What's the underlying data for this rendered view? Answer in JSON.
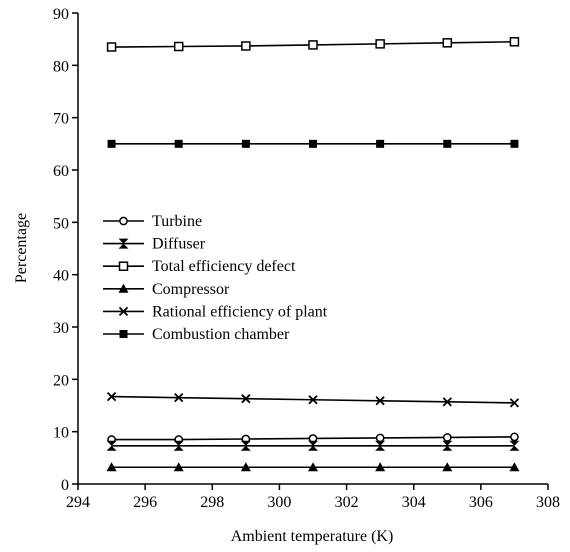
{
  "chart_data": {
    "type": "line",
    "title": "",
    "xlabel": "Ambient temperature (K)",
    "ylabel": "Percentage",
    "xlim": [
      294,
      308
    ],
    "ylim": [
      0,
      90
    ],
    "x_ticks": [
      294,
      296,
      298,
      300,
      302,
      304,
      306,
      308
    ],
    "y_ticks": [
      0,
      10,
      20,
      30,
      40,
      50,
      60,
      70,
      80,
      90
    ],
    "grid": false,
    "legend_position": "center-left",
    "x": [
      295,
      297,
      299,
      301,
      303,
      305,
      307
    ],
    "series": [
      {
        "name": "Turbine",
        "marker": "open-circle",
        "values": [
          8.5,
          8.5,
          8.6,
          8.7,
          8.8,
          8.9,
          9.0
        ]
      },
      {
        "name": "Diffuser",
        "marker": "bowtie",
        "values": [
          7.3,
          7.3,
          7.3,
          7.3,
          7.3,
          7.3,
          7.3
        ]
      },
      {
        "name": "Total efficiency defect",
        "marker": "open-square",
        "values": [
          83.5,
          83.6,
          83.7,
          83.9,
          84.1,
          84.3,
          84.5
        ]
      },
      {
        "name": "Compressor",
        "marker": "filled-triangle",
        "values": [
          3.2,
          3.2,
          3.2,
          3.2,
          3.2,
          3.2,
          3.2
        ]
      },
      {
        "name": "Rational efficiency of plant",
        "marker": "cross",
        "values": [
          16.7,
          16.5,
          16.3,
          16.1,
          15.9,
          15.7,
          15.5
        ]
      },
      {
        "name": "Combustion chamber",
        "marker": "filled-square",
        "values": [
          65.0,
          65.0,
          65.0,
          65.0,
          65.0,
          65.0,
          65.0
        ]
      }
    ]
  }
}
